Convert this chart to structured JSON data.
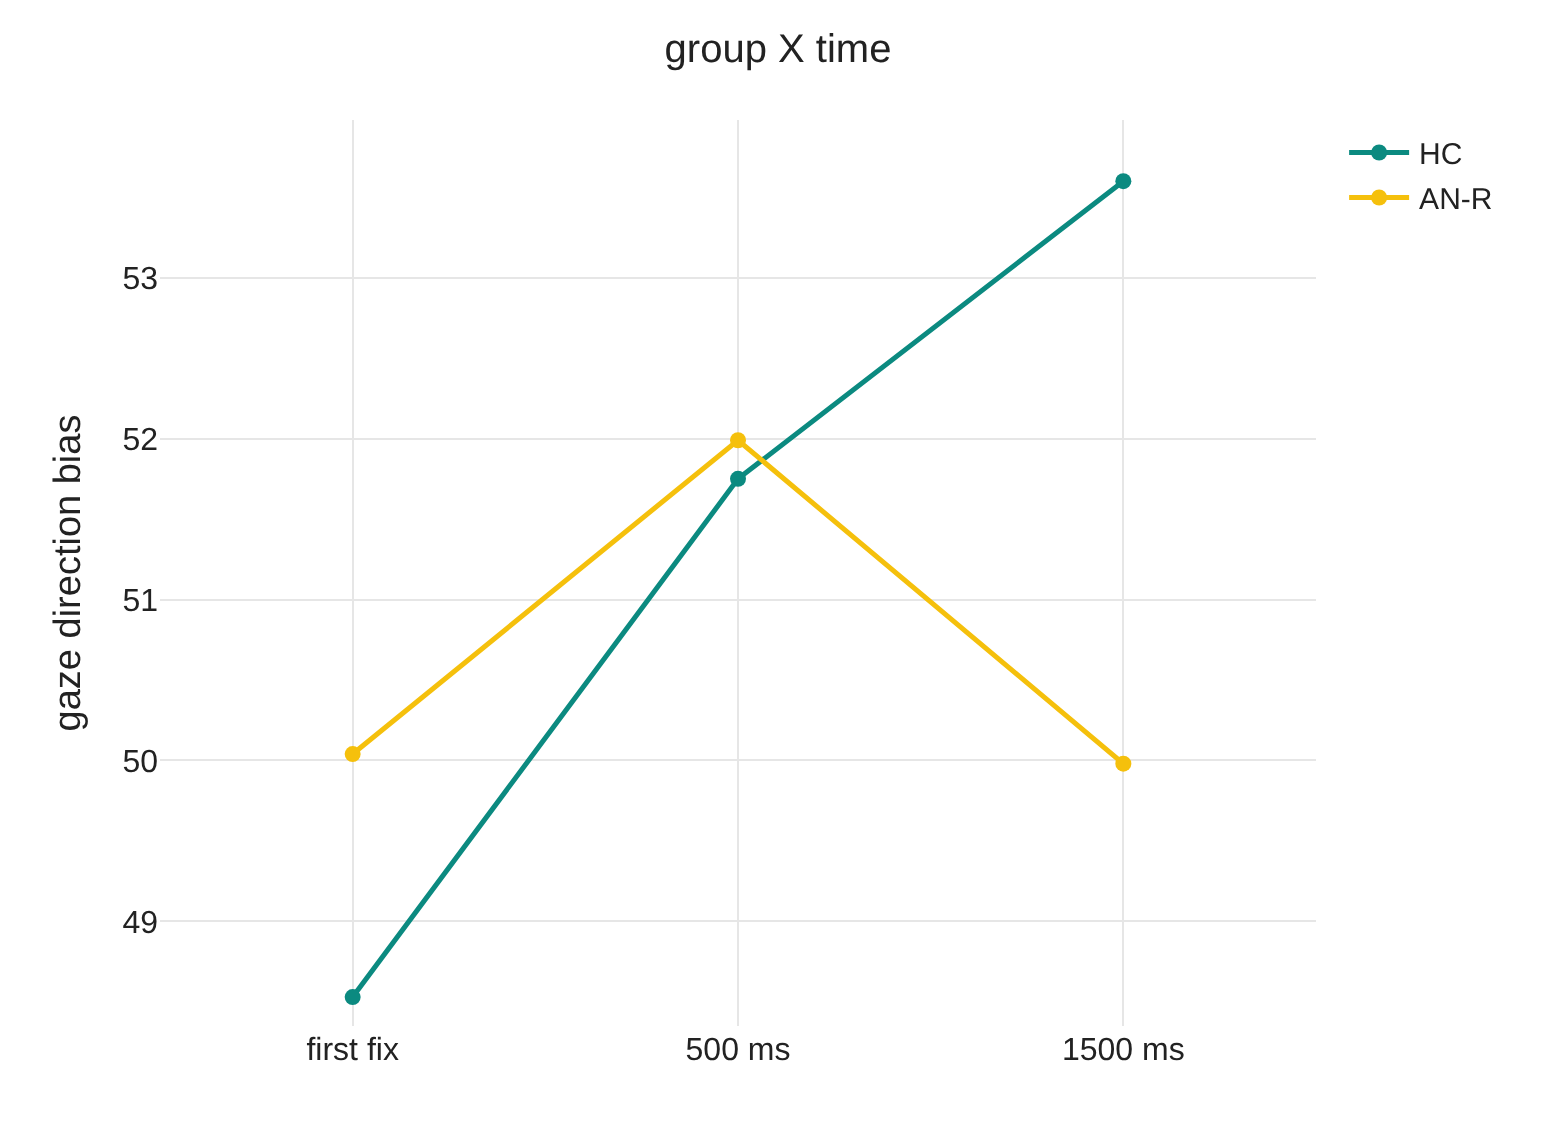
{
  "chart_data": {
    "type": "line",
    "title": "group X time",
    "ylabel": "gaze direction bias",
    "categories": [
      "first fix",
      "500 ms",
      "1500 ms"
    ],
    "series": [
      {
        "name": "HC",
        "color": "#0b8a80",
        "values": [
          48.53,
          51.75,
          53.6
        ]
      },
      {
        "name": "AN-R",
        "color": "#f5c00c",
        "values": [
          50.04,
          51.99,
          49.98
        ]
      }
    ],
    "ylim": [
      48.35,
      53.98
    ],
    "yticks": [
      49,
      50,
      51,
      52,
      53
    ],
    "grid": true,
    "legend": "top right",
    "marker": "circle",
    "line_style": "solid"
  }
}
